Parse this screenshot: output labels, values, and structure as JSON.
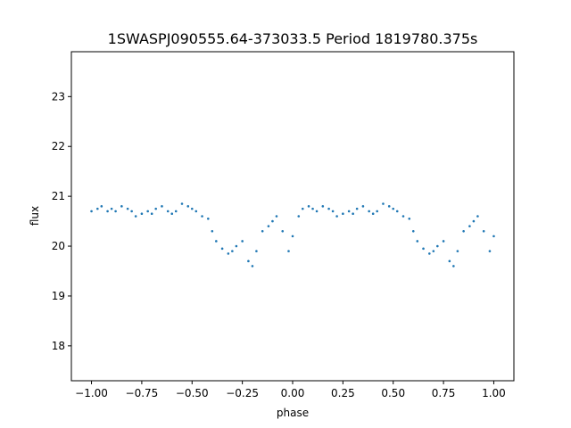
{
  "chart_data": {
    "type": "scatter",
    "title": "1SWASPJ090555.64-373033.5 Period 1819780.375s",
    "xlabel": "phase",
    "ylabel": "flux",
    "xlim": [
      -1.1,
      1.1
    ],
    "ylim": [
      17.3,
      23.9
    ],
    "xticks": [
      -1.0,
      -0.75,
      -0.5,
      -0.25,
      0.0,
      0.25,
      0.5,
      0.75,
      1.0
    ],
    "xtick_labels": [
      "−1.00",
      "−0.75",
      "−0.50",
      "−0.25",
      "0.00",
      "0.25",
      "0.50",
      "0.75",
      "1.00"
    ],
    "yticks": [
      18,
      19,
      20,
      21,
      22,
      23
    ],
    "ytick_labels": [
      "18",
      "19",
      "20",
      "21",
      "22",
      "23"
    ],
    "grid": false,
    "marker_color": "#1f77b4",
    "series": [
      {
        "x": [
          -1.0,
          -0.97,
          -0.95,
          -0.92,
          -0.9,
          -0.88,
          -0.85,
          -0.82,
          -0.8,
          -0.78,
          -0.75,
          -0.72,
          -0.7,
          -0.68,
          -0.65,
          -0.62,
          -0.6,
          -0.58,
          -0.55,
          -0.52,
          -0.5,
          -0.48,
          -0.45,
          -0.42,
          -0.4,
          -0.38,
          -0.35,
          -0.32,
          -0.3,
          -0.28,
          -0.25,
          -0.22,
          -0.2,
          -0.18,
          -0.15,
          -0.12,
          -0.1,
          -0.08,
          -0.05,
          -0.02,
          0.0,
          0.03,
          0.05,
          0.08,
          0.1,
          0.12,
          0.15,
          0.18,
          0.2,
          0.22,
          0.25,
          0.28,
          0.3,
          0.32,
          0.35,
          0.38,
          0.4,
          0.42,
          0.45,
          0.48,
          0.5,
          0.52,
          0.55,
          0.58,
          0.6,
          0.62,
          0.65,
          0.68,
          0.7,
          0.72,
          0.75,
          0.78,
          0.8,
          0.82,
          0.85,
          0.88,
          0.9,
          0.92,
          0.95,
          0.98,
          1.0
        ],
        "y": [
          20.7,
          20.75,
          20.8,
          20.7,
          20.75,
          20.7,
          20.8,
          20.75,
          20.7,
          20.6,
          20.65,
          20.7,
          20.65,
          20.75,
          20.8,
          20.7,
          20.65,
          20.7,
          20.85,
          20.8,
          20.75,
          20.7,
          20.6,
          20.55,
          20.3,
          20.1,
          19.95,
          19.85,
          19.9,
          20.0,
          20.1,
          19.7,
          19.6,
          19.9,
          20.3,
          20.4,
          20.5,
          20.6,
          20.3,
          19.9,
          20.2,
          20.6,
          20.75,
          20.8,
          20.75,
          20.7,
          20.8,
          20.75,
          20.7,
          20.6,
          20.65,
          20.7,
          20.65,
          20.75,
          20.8,
          20.7,
          20.65,
          20.7,
          20.85,
          20.8,
          20.75,
          20.7,
          20.6,
          20.55,
          20.3,
          20.1,
          19.95,
          19.85,
          19.9,
          20.0,
          20.1,
          19.7,
          19.6,
          19.9,
          20.3,
          20.4,
          20.5,
          20.6,
          20.3,
          19.9,
          20.2
        ]
      }
    ]
  }
}
